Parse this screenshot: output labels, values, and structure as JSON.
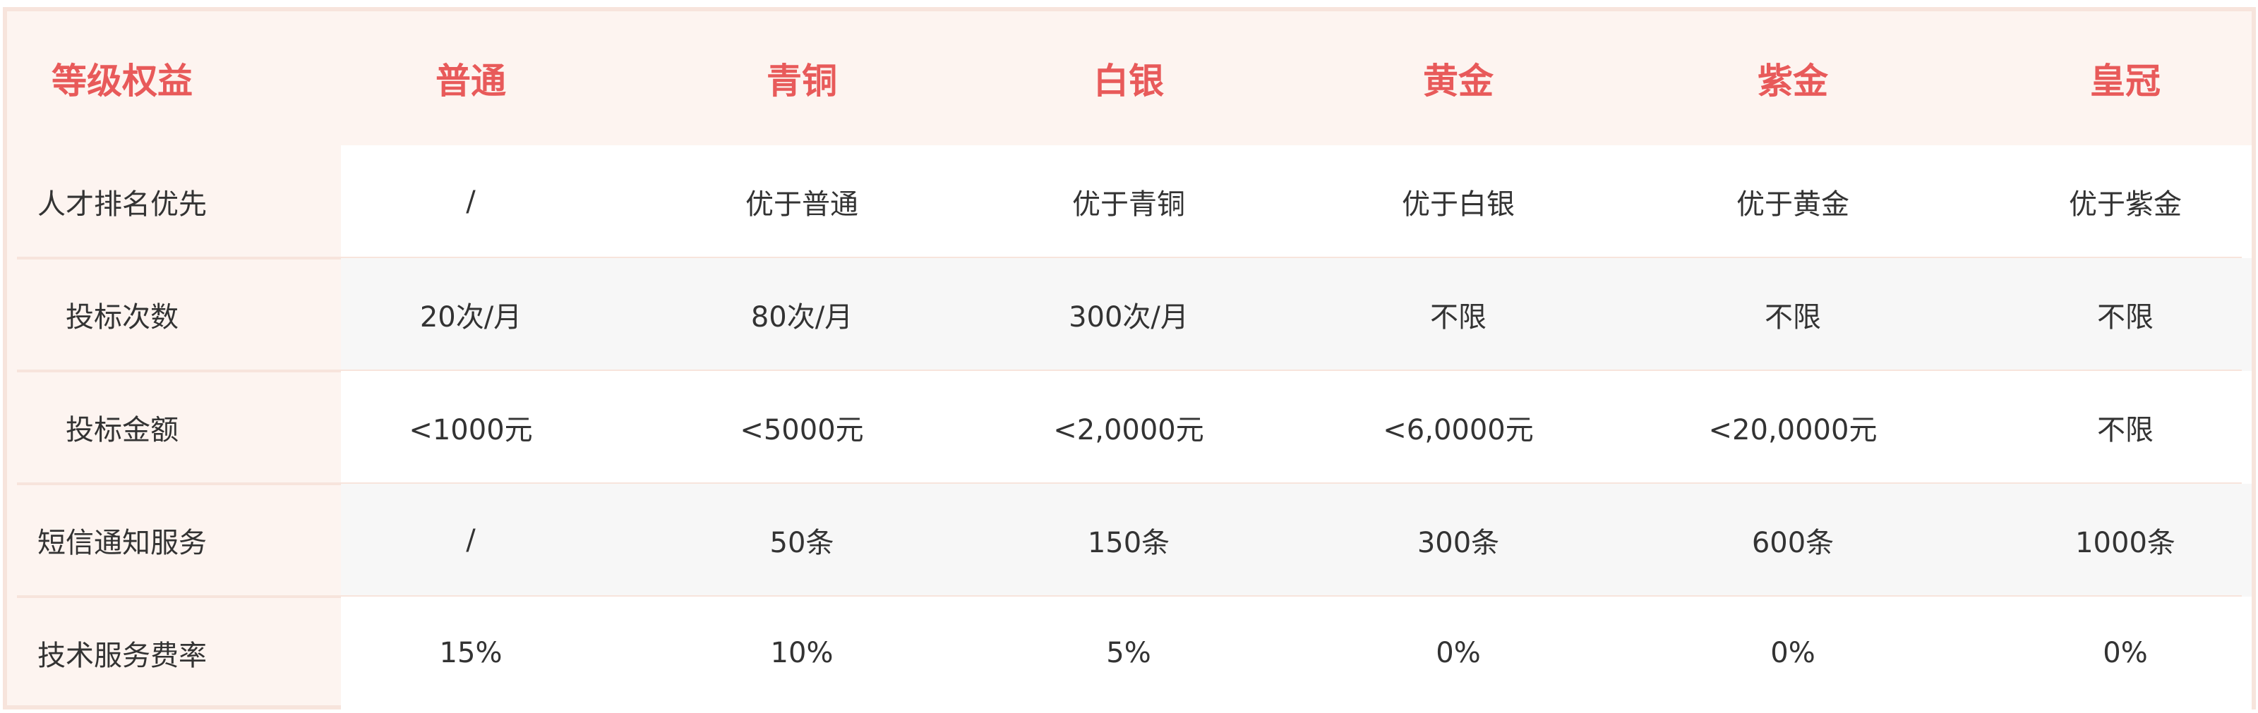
{
  "table": {
    "headers": [
      "等级权益",
      "普通",
      "青铜",
      "白银",
      "黄金",
      "紫金",
      "皇冠"
    ],
    "rows": [
      [
        "人才排名优先",
        "/",
        "优于普通",
        "优于青铜",
        "优于白银",
        "优于黄金",
        "优于紫金"
      ],
      [
        "投标次数",
        "20次/月",
        "80次/月",
        "300次/月",
        "不限",
        "不限",
        "不限"
      ],
      [
        "投标金额",
        "<1000元",
        "<5000元",
        "<2,0000元",
        "<6,0000元",
        "<20,0000元",
        "不限"
      ],
      [
        "短信通知服务",
        "/",
        "50条",
        "150条",
        "300条",
        "600条",
        "1000条"
      ],
      [
        "技术服务费率",
        "15%",
        "10%",
        "5%",
        "0%",
        "0%",
        "0%"
      ]
    ]
  },
  "colors": {
    "header_text": "#e85a5a",
    "header_bg": "#fdf4f0",
    "border": "#f7e4dc",
    "stripe": "#f7f7f7",
    "text": "#333333"
  }
}
